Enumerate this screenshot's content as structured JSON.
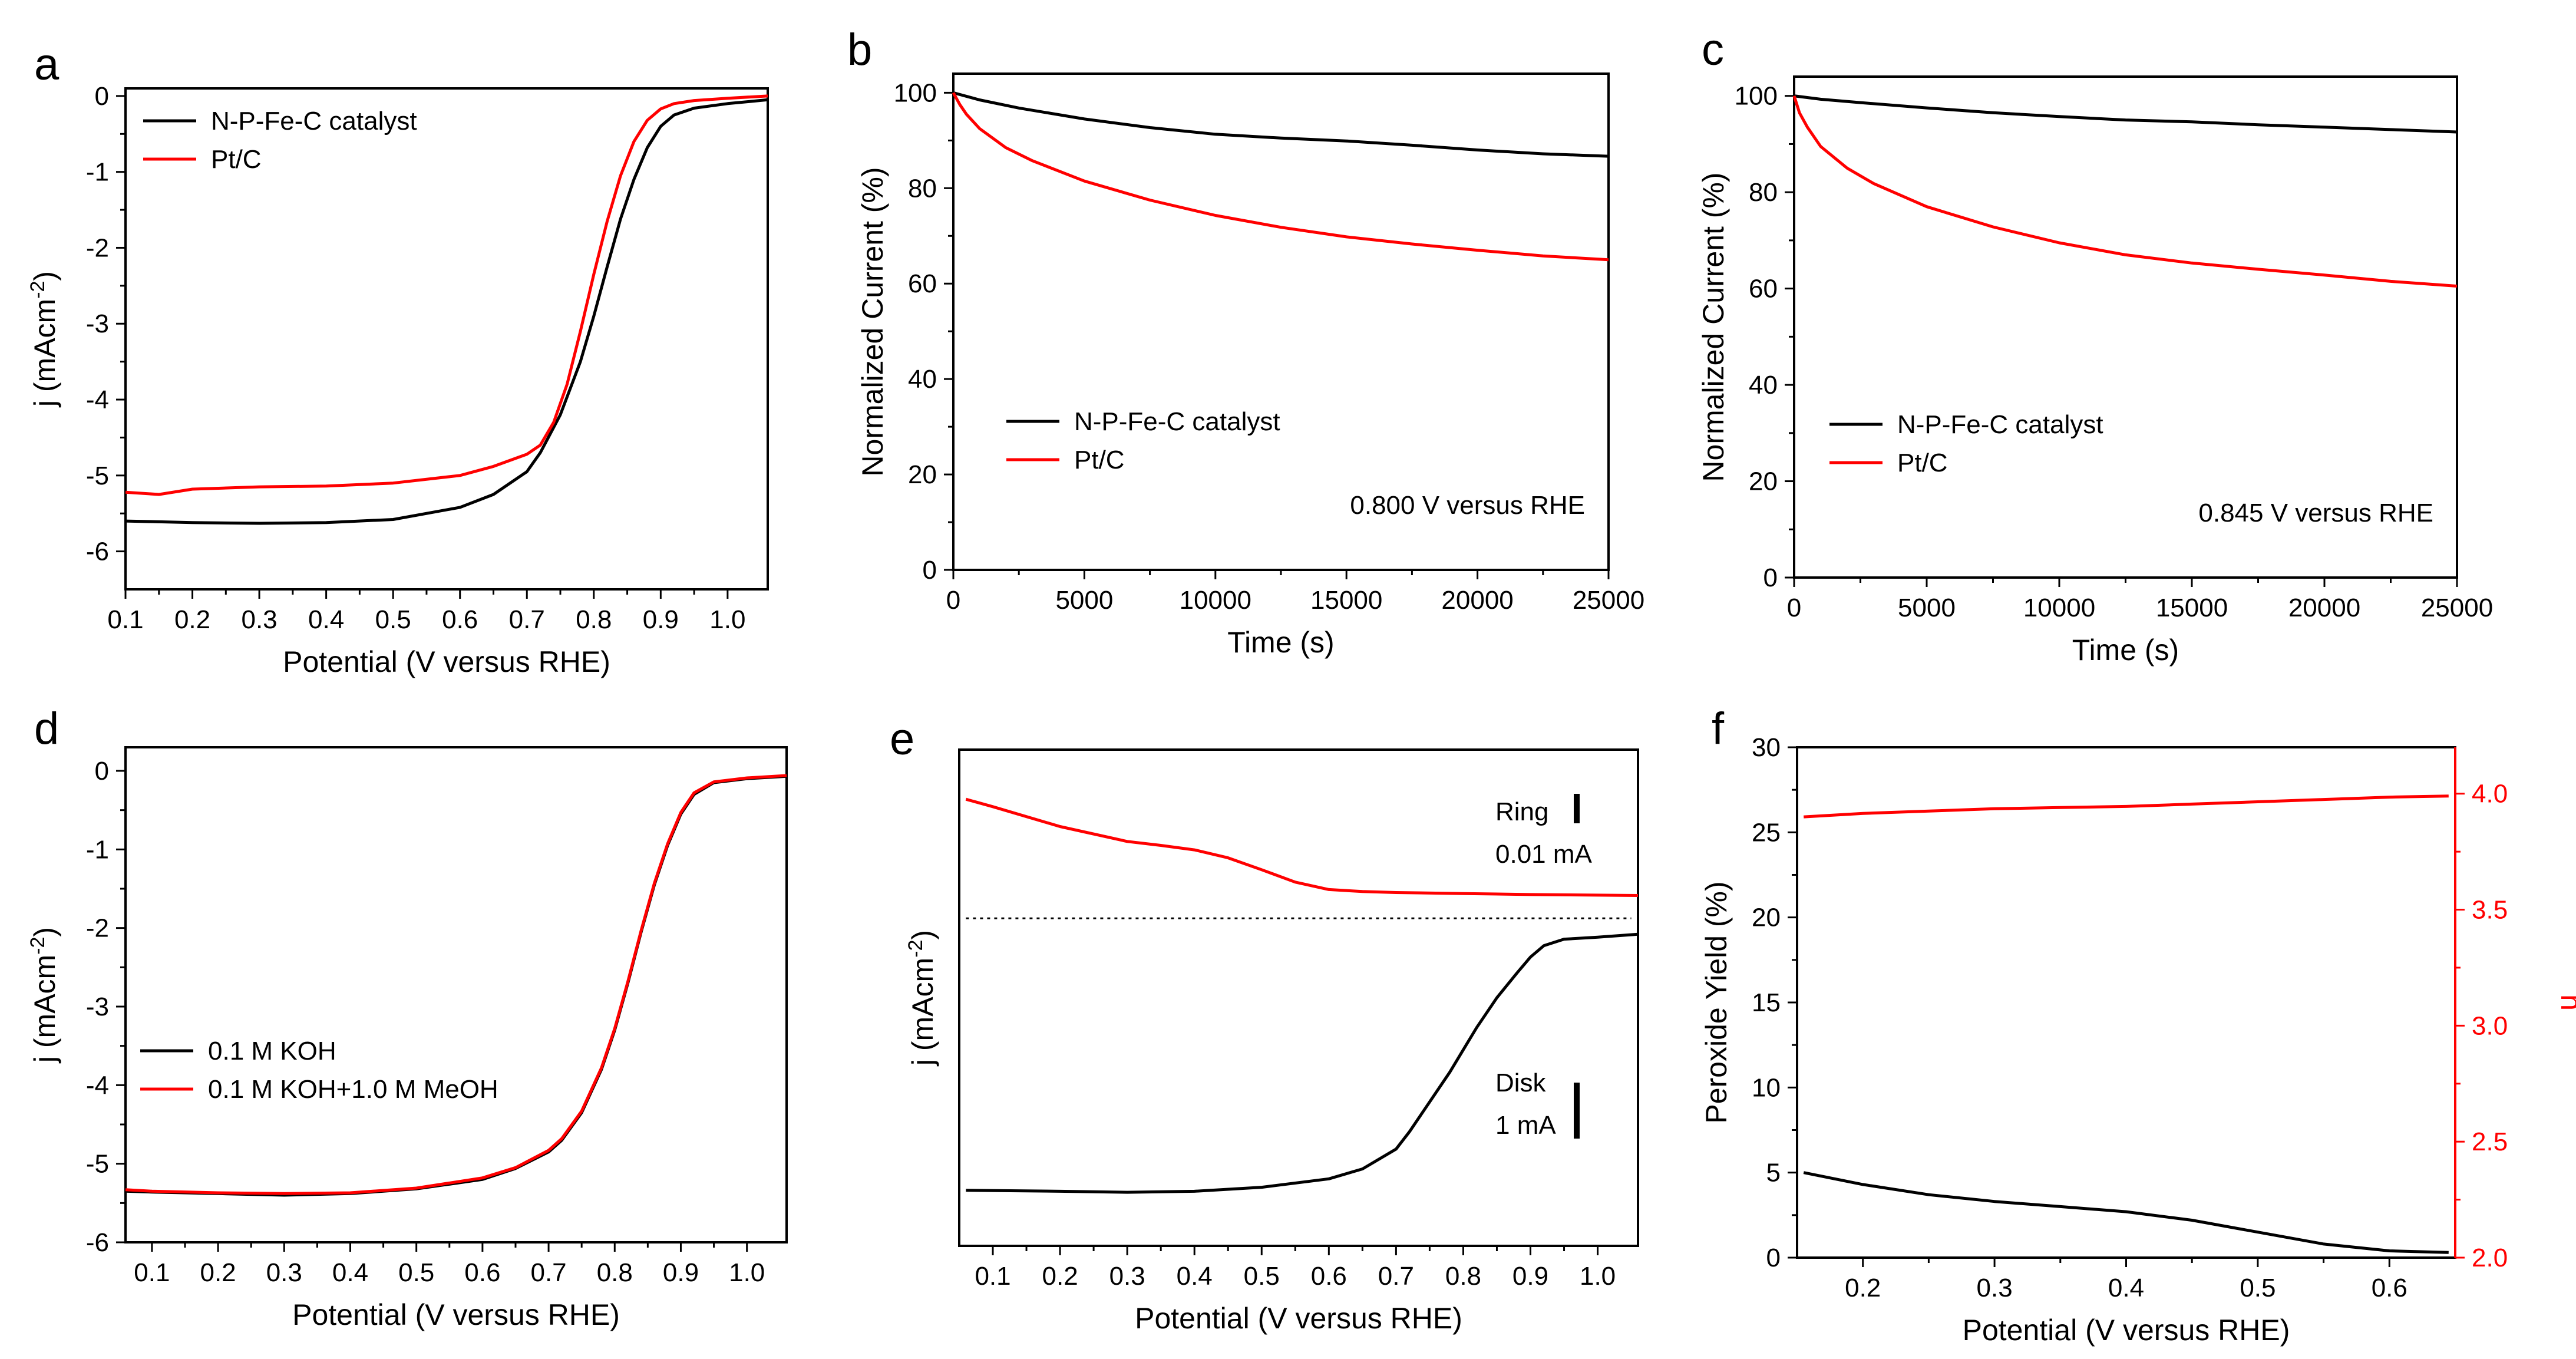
{
  "figure": {
    "panel_letters": [
      "a",
      "b",
      "c",
      "d",
      "e",
      "f"
    ]
  },
  "chart_data": [
    {
      "id": "a",
      "type": "line",
      "xlabel": "Potential (V versus RHE)",
      "ylabel": "j (mAcm-2)",
      "xlim": [
        0.1,
        1.06
      ],
      "ylim": [
        -6.5,
        0.1
      ],
      "xticks": [
        "0.1",
        "0.2",
        "0.3",
        "0.4",
        "0.5",
        "0.6",
        "0.7",
        "0.8",
        "0.9",
        "1.0"
      ],
      "yticks": [
        "0",
        "-1",
        "-2",
        "-3",
        "-4",
        "-5",
        "-6"
      ],
      "legend": {
        "position": "top-left",
        "entries": [
          "N-P-Fe-C catalyst",
          "Pt/C"
        ]
      },
      "series": [
        {
          "name": "N-P-Fe-C catalyst",
          "color": "#000000",
          "x": [
            0.1,
            0.2,
            0.3,
            0.4,
            0.5,
            0.6,
            0.65,
            0.7,
            0.72,
            0.75,
            0.78,
            0.8,
            0.82,
            0.84,
            0.86,
            0.88,
            0.9,
            0.92,
            0.95,
            1.0,
            1.06
          ],
          "y": [
            -5.6,
            -5.62,
            -5.63,
            -5.62,
            -5.58,
            -5.42,
            -5.25,
            -4.95,
            -4.7,
            -4.2,
            -3.5,
            -2.9,
            -2.25,
            -1.62,
            -1.1,
            -0.68,
            -0.4,
            -0.25,
            -0.16,
            -0.1,
            -0.05
          ]
        },
        {
          "name": "Pt/C",
          "color": "#ff0000",
          "x": [
            0.1,
            0.15,
            0.2,
            0.3,
            0.4,
            0.5,
            0.6,
            0.65,
            0.7,
            0.72,
            0.74,
            0.76,
            0.78,
            0.8,
            0.82,
            0.84,
            0.86,
            0.88,
            0.9,
            0.92,
            0.95,
            1.0,
            1.06
          ],
          "y": [
            -5.22,
            -5.25,
            -5.18,
            -5.15,
            -5.14,
            -5.1,
            -5.0,
            -4.88,
            -4.72,
            -4.6,
            -4.3,
            -3.8,
            -3.1,
            -2.35,
            -1.65,
            -1.05,
            -0.6,
            -0.32,
            -0.17,
            -0.1,
            -0.06,
            -0.03,
            0.0
          ]
        }
      ]
    },
    {
      "id": "b",
      "type": "line",
      "xlabel": "Time (s)",
      "ylabel": "Normalized Current (%)",
      "xlim": [
        0,
        25000
      ],
      "ylim": [
        0,
        104
      ],
      "xticks": [
        "0",
        "5000",
        "10000",
        "15000",
        "20000",
        "25000"
      ],
      "yticks": [
        "0",
        "20",
        "40",
        "60",
        "80",
        "100"
      ],
      "legend": {
        "position": "lower-left",
        "entries": [
          "N-P-Fe-C catalyst",
          "Pt/C"
        ]
      },
      "annotation": "0.800 V versus RHE",
      "series": [
        {
          "name": "N-P-Fe-C catalyst",
          "color": "#000000",
          "x": [
            0,
            1000,
            2500,
            5000,
            7500,
            10000,
            12500,
            15000,
            17500,
            20000,
            22500,
            25000
          ],
          "y": [
            100,
            98.5,
            96.8,
            94.5,
            92.7,
            91.3,
            90.5,
            89.9,
            89.0,
            88.0,
            87.2,
            86.7
          ]
        },
        {
          "name": "Pt/C",
          "color": "#ff0000",
          "x": [
            0,
            250,
            500,
            1000,
            2000,
            3000,
            5000,
            7500,
            10000,
            12500,
            15000,
            17500,
            20000,
            22500,
            25000
          ],
          "y": [
            100,
            97.5,
            95.5,
            92.5,
            88.5,
            85.8,
            81.5,
            77.5,
            74.3,
            71.8,
            69.8,
            68.3,
            67.0,
            65.8,
            65.0
          ]
        }
      ]
    },
    {
      "id": "c",
      "type": "line",
      "xlabel": "Time (s)",
      "ylabel": "Normalized Current (%)",
      "xlim": [
        0,
        25000
      ],
      "ylim": [
        0,
        104
      ],
      "xticks": [
        "0",
        "5000",
        "10000",
        "15000",
        "20000",
        "25000"
      ],
      "yticks": [
        "0",
        "20",
        "40",
        "60",
        "80",
        "100"
      ],
      "legend": {
        "position": "lower-left",
        "entries": [
          "N-P-Fe-C catalyst",
          "Pt/C"
        ]
      },
      "annotation": "0.845 V versus RHE",
      "series": [
        {
          "name": "N-P-Fe-C catalyst",
          "color": "#000000",
          "x": [
            0,
            1000,
            2500,
            5000,
            7500,
            10000,
            12500,
            15000,
            17500,
            20000,
            22500,
            25000
          ],
          "y": [
            100,
            99.3,
            98.6,
            97.5,
            96.5,
            95.7,
            95.0,
            94.6,
            94.0,
            93.5,
            93.0,
            92.5
          ]
        },
        {
          "name": "Pt/C",
          "color": "#ff0000",
          "x": [
            0,
            200,
            500,
            1000,
            2000,
            3000,
            5000,
            7500,
            10000,
            12500,
            15000,
            17500,
            20000,
            22500,
            25000
          ],
          "y": [
            100,
            96.5,
            93.5,
            89.5,
            85.0,
            81.8,
            77.0,
            72.8,
            69.5,
            67.0,
            65.3,
            64.0,
            62.8,
            61.5,
            60.5
          ]
        }
      ]
    },
    {
      "id": "d",
      "type": "line",
      "xlabel": "Potential (V versus RHE)",
      "ylabel": "j (mAcm-2)",
      "xlim": [
        0.06,
        1.06
      ],
      "ylim": [
        -6.0,
        0.3
      ],
      "xticks": [
        "0.1",
        "0.2",
        "0.3",
        "0.4",
        "0.5",
        "0.6",
        "0.7",
        "0.8",
        "0.9",
        "1.0"
      ],
      "yticks": [
        "0",
        "-1",
        "-2",
        "-3",
        "-4",
        "-5",
        "-6"
      ],
      "legend": {
        "position": "lower-left",
        "entries": [
          "0.1 M KOH",
          "0.1 M KOH+1.0 M MeOH"
        ]
      },
      "series": [
        {
          "name": "0.1 M KOH",
          "color": "#000000",
          "x": [
            0.06,
            0.1,
            0.2,
            0.3,
            0.4,
            0.5,
            0.6,
            0.65,
            0.7,
            0.72,
            0.75,
            0.78,
            0.8,
            0.82,
            0.84,
            0.86,
            0.88,
            0.9,
            0.92,
            0.95,
            1.0,
            1.06
          ],
          "y": [
            -5.35,
            -5.36,
            -5.38,
            -5.4,
            -5.38,
            -5.32,
            -5.2,
            -5.06,
            -4.85,
            -4.7,
            -4.35,
            -3.8,
            -3.3,
            -2.7,
            -2.05,
            -1.45,
            -0.95,
            -0.55,
            -0.3,
            -0.15,
            -0.1,
            -0.07
          ]
        },
        {
          "name": "0.1 M KOH+1.0 M MeOH",
          "color": "#ff0000",
          "x": [
            0.06,
            0.1,
            0.2,
            0.3,
            0.4,
            0.5,
            0.6,
            0.65,
            0.7,
            0.72,
            0.75,
            0.78,
            0.8,
            0.82,
            0.84,
            0.86,
            0.88,
            0.9,
            0.92,
            0.95,
            1.0,
            1.06
          ],
          "y": [
            -5.33,
            -5.35,
            -5.37,
            -5.38,
            -5.37,
            -5.31,
            -5.18,
            -5.05,
            -4.83,
            -4.68,
            -4.33,
            -3.78,
            -3.28,
            -2.68,
            -2.03,
            -1.43,
            -0.93,
            -0.53,
            -0.28,
            -0.14,
            -0.09,
            -0.06
          ]
        }
      ]
    },
    {
      "id": "e",
      "type": "line",
      "xlabel": "Potential (V versus RHE)",
      "ylabel": "j (mAcm-2)",
      "xlim": [
        0.05,
        1.06
      ],
      "ylim": [
        0,
        100
      ],
      "xticks": [
        "0.1",
        "0.2",
        "0.3",
        "0.4",
        "0.5",
        "0.6",
        "0.7",
        "0.8",
        "0.9",
        "1.0"
      ],
      "yticks": [],
      "reference_line": {
        "style": "dotted",
        "y": 66
      },
      "scale_bars": [
        {
          "label": "Ring",
          "value": "0.01 mA"
        },
        {
          "label": "Disk",
          "value": "1 mA"
        }
      ],
      "series": [
        {
          "name": "Ring current",
          "color": "#ff0000",
          "x": [
            0.06,
            0.1,
            0.2,
            0.3,
            0.35,
            0.4,
            0.45,
            0.5,
            0.55,
            0.6,
            0.65,
            0.7,
            0.8,
            0.9,
            1.06
          ],
          "y": [
            90,
            88.5,
            84.5,
            81.5,
            80.7,
            79.8,
            78.2,
            75.8,
            73.3,
            71.8,
            71.4,
            71.2,
            71.0,
            70.8,
            70.6
          ]
        },
        {
          "name": "Disk current",
          "color": "#000000",
          "x": [
            0.06,
            0.2,
            0.3,
            0.4,
            0.5,
            0.6,
            0.65,
            0.7,
            0.72,
            0.75,
            0.78,
            0.8,
            0.82,
            0.85,
            0.88,
            0.9,
            0.92,
            0.95,
            1.0,
            1.06
          ],
          "y": [
            11.2,
            11.0,
            10.8,
            11.0,
            11.8,
            13.5,
            15.5,
            19.5,
            23,
            29,
            35,
            39.5,
            44,
            50,
            55,
            58.2,
            60.5,
            61.8,
            62.2,
            62.8
          ]
        }
      ]
    },
    {
      "id": "f",
      "type": "line",
      "xlabel": "Potential (V versus RHE)",
      "ylabel": "Peroxide Yield (%)",
      "ylabel_right": "n",
      "xlim": [
        0.15,
        0.65
      ],
      "ylim": [
        0,
        30
      ],
      "ylim_right": [
        2.0,
        4.2
      ],
      "xticks": [
        "0.2",
        "0.3",
        "0.4",
        "0.5",
        "0.6"
      ],
      "yticks": [
        "0",
        "5",
        "10",
        "15",
        "20",
        "25",
        "30"
      ],
      "yticks_right": [
        "2.0",
        "2.5",
        "3.0",
        "3.5",
        "4.0"
      ],
      "series": [
        {
          "name": "Peroxide Yield",
          "axis": "left",
          "color": "#000000",
          "x": [
            0.155,
            0.2,
            0.25,
            0.3,
            0.35,
            0.4,
            0.45,
            0.5,
            0.55,
            0.6,
            0.645
          ],
          "y": [
            5.0,
            4.3,
            3.7,
            3.3,
            3.0,
            2.7,
            2.2,
            1.5,
            0.8,
            0.4,
            0.3
          ]
        },
        {
          "name": "n",
          "axis": "right",
          "color": "#ff0000",
          "x": [
            0.155,
            0.2,
            0.25,
            0.3,
            0.35,
            0.4,
            0.45,
            0.5,
            0.55,
            0.6,
            0.645
          ],
          "y": [
            3.9,
            3.915,
            3.925,
            3.935,
            3.94,
            3.945,
            3.955,
            3.965,
            3.975,
            3.985,
            3.99
          ]
        }
      ]
    }
  ]
}
